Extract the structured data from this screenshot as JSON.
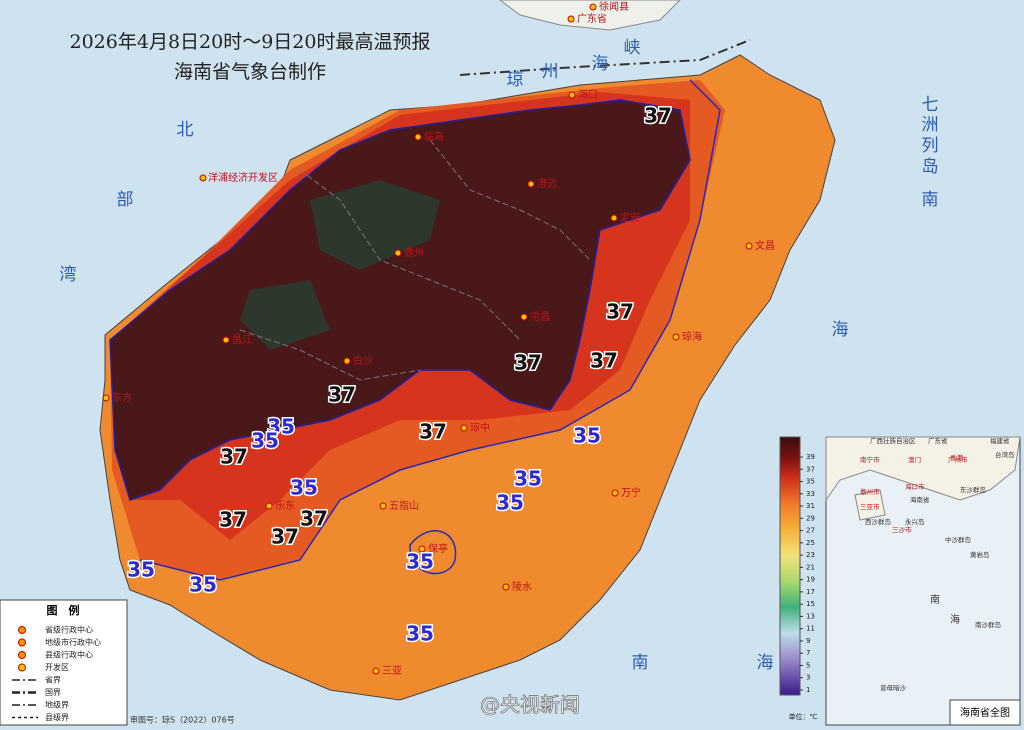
{
  "title": {
    "line1": "2026年4月8日20时～9日20时最高温预报",
    "line2": "海南省气象台制作"
  },
  "sea_labels": [
    "北",
    "部",
    "湾",
    "琼",
    "州",
    "海",
    "峡",
    "南",
    "海",
    "南",
    "海",
    "七",
    "洲",
    "列",
    "岛"
  ],
  "cities": [
    "徐闻县",
    "广东省",
    "海口",
    "临高",
    "澄迈",
    "洋浦经济开发区",
    "儋州",
    "定安",
    "文昌",
    "屯昌",
    "琼海",
    "昌江",
    "白沙",
    "东方",
    "琼中",
    "五指山",
    "万宁",
    "乐东",
    "保亭",
    "陵水",
    "三亚"
  ],
  "contours_37": [
    37,
    37,
    37,
    37,
    37,
    37,
    37,
    37,
    37,
    37
  ],
  "contours_35": [
    35,
    35,
    35,
    35,
    35,
    35,
    35,
    35,
    35,
    35
  ],
  "colorbar": {
    "ticks": [
      39,
      37,
      35,
      33,
      31,
      29,
      27,
      25,
      23,
      21,
      19,
      17,
      15,
      13,
      11,
      9,
      7,
      5,
      3,
      1
    ],
    "unit": "单位：℃"
  },
  "legend": {
    "title": "图　例",
    "items": [
      "省级行政中心",
      "地级市行政中心",
      "县级行政中心",
      "开发区",
      "省界",
      "国界",
      "地级界",
      "县级界"
    ]
  },
  "inset": {
    "labels": [
      "广西壮族自治区",
      "广东省",
      "福建省",
      "南宁市",
      "广州市",
      "澳门",
      "香港",
      "台湾岛",
      "海口市",
      "儋州市",
      "三亚市",
      "三沙市",
      "海南省",
      "东沙群岛",
      "西沙群岛",
      "永兴岛",
      "中沙群岛",
      "黄岩岛",
      "南",
      "海",
      "南沙群岛",
      "曾母暗沙"
    ],
    "title": "海南省全图"
  },
  "footer": {
    "review_no": "审图号：琼S（2022）076号",
    "watermark": "@央视新闻"
  }
}
